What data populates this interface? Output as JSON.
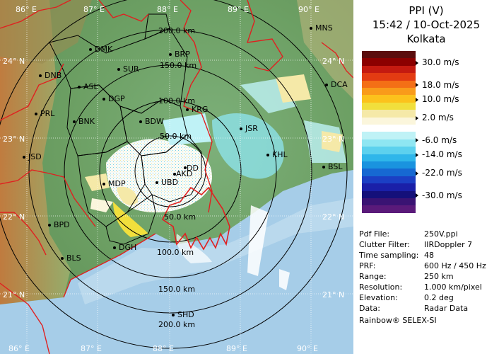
{
  "header": {
    "product": "PPI (V)",
    "datetime": "15:42 / 10-Oct-2025",
    "site": "Kolkata"
  },
  "legend": {
    "colors": [
      "#5b0d0d",
      "#8b0000",
      "#c41a10",
      "#e33b12",
      "#f46f16",
      "#f99b1a",
      "#fcc21c",
      "#f1df3c",
      "#f5e9a8",
      "#fbf6dc",
      "#ffffff",
      "#bff2f6",
      "#8fe6f2",
      "#5dd1ee",
      "#2fb6ea",
      "#1a93df",
      "#1668d2",
      "#1b3fc4",
      "#1a1fa8",
      "#14107a",
      "#3a1373",
      "#5a1a7a"
    ],
    "ticks": [
      {
        "label": "30.0 m/s",
        "row": 1
      },
      {
        "label": "18.0 m/s",
        "row": 4
      },
      {
        "label": "10.0 m/s",
        "row": 6
      },
      {
        "label": "2.0 m/s",
        "row": 8.5
      },
      {
        "label": "-6.0 m/s",
        "row": 11.5
      },
      {
        "label": "-14.0 m/s",
        "row": 13.5
      },
      {
        "label": "-22.0 m/s",
        "row": 16
      },
      {
        "label": "-30.0 m/s",
        "row": 19
      }
    ]
  },
  "info": [
    {
      "key": "Pdf File:",
      "value": "250V.ppi"
    },
    {
      "key": "Clutter Filter:",
      "value": "IIRDoppler 7"
    },
    {
      "key": "Time sampling:",
      "value": "48"
    },
    {
      "key": "PRF:",
      "value": "600 Hz / 450 Hz"
    },
    {
      "key": "Range:",
      "value": "250 km"
    },
    {
      "key": "Resolution:",
      "value": "1.000 km/pixel"
    },
    {
      "key": "Elevation:",
      "value": "0.2 deg"
    },
    {
      "key": "Data:",
      "value": "Radar Data"
    }
  ],
  "footer": "Rainbow® SELEX-SI",
  "map": {
    "lon_labels": [
      "86° E",
      "87° E",
      "88° E",
      "89° E",
      "90° E"
    ],
    "lat_labels": [
      "24° N",
      "23° N",
      "22° N",
      "21° N"
    ],
    "range_labels": [
      "50.0 km",
      "100.0 km",
      "150.0 km",
      "200.0 km"
    ],
    "cities": [
      {
        "code": "MNS"
      },
      {
        "code": "DMK"
      },
      {
        "code": "BRP"
      },
      {
        "code": "DNB"
      },
      {
        "code": "SUR"
      },
      {
        "code": "ASL"
      },
      {
        "code": "DGP"
      },
      {
        "code": "DCA"
      },
      {
        "code": "KRG"
      },
      {
        "code": "PRL"
      },
      {
        "code": "BNK"
      },
      {
        "code": "BDW"
      },
      {
        "code": "JSR"
      },
      {
        "code": "JSD"
      },
      {
        "code": "KHL"
      },
      {
        "code": "DD"
      },
      {
        "code": "BSL"
      },
      {
        "code": "AKD"
      },
      {
        "code": "MDP"
      },
      {
        "code": "UBD"
      },
      {
        "code": "BPD"
      },
      {
        "code": "DGH"
      },
      {
        "code": "BLS"
      },
      {
        "code": "SHD"
      }
    ]
  }
}
